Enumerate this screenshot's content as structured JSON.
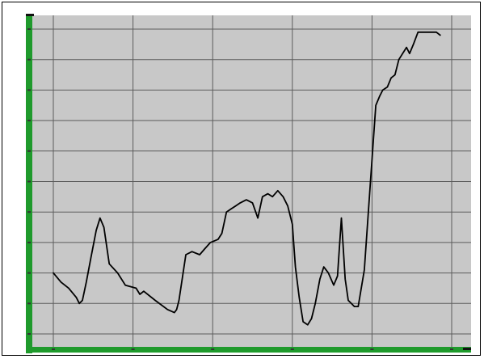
{
  "colors": {
    "plot_background": "#c8c8c8",
    "grid": "#5c5c5c",
    "axis": "#1f9a2c",
    "line": "#000000",
    "frame": "#000000"
  },
  "chart_data": {
    "type": "line",
    "title": "",
    "xlabel": "",
    "ylabel": "",
    "xlim": [
      0,
      52
    ],
    "ylim": [
      0,
      100
    ],
    "x_gridlines": 5,
    "y_gridlines": 10,
    "grid": true,
    "legend": "none",
    "series": [
      {
        "x": [
          0,
          1,
          2,
          3,
          3.4,
          3.8,
          4.3,
          4.9,
          5.6,
          6.1,
          6.6,
          7.3,
          8.4,
          9.4,
          10.8,
          11.3,
          11.8,
          13.3,
          14.9,
          15.8,
          16.1,
          16.4,
          17.3,
          18.1,
          19.1,
          19.8,
          20.5,
          21.5,
          22.0,
          22.6,
          23.2,
          23.8,
          24.4,
          25.2,
          26.0,
          26.7,
          27.3,
          28.0,
          28.6,
          29.3,
          30.0,
          30.6,
          31.2,
          31.6,
          32.1,
          32.6,
          33.2,
          33.7,
          34.2,
          34.8,
          35.3,
          35.9,
          36.6,
          37.1,
          37.6,
          38.1,
          38.5,
          38.9,
          39.3,
          39.8,
          40.6,
          41.4,
          42.1,
          42.6,
          43.0,
          43.6,
          44.1,
          44.6,
          45.1,
          45.6,
          46.1,
          46.5,
          47.0,
          47.6,
          48.2,
          48.6,
          49.0,
          49.5,
          50.0,
          50.5
        ],
        "y": [
          20,
          17,
          15,
          12,
          10,
          11,
          17,
          25,
          34,
          38,
          35,
          23,
          20,
          16,
          15,
          13,
          14,
          11,
          8,
          7,
          8,
          11,
          26,
          27,
          26,
          28,
          30,
          31,
          33,
          40,
          41,
          42,
          43,
          44,
          43,
          38,
          45,
          46,
          45,
          47,
          45,
          42,
          36,
          22,
          12,
          4,
          3,
          5,
          10,
          18,
          22,
          20,
          16,
          19,
          38,
          18,
          11,
          10,
          9,
          9,
          21,
          50,
          75,
          78,
          80,
          81,
          84,
          85,
          90,
          92,
          94,
          92,
          95,
          99,
          99,
          99,
          99,
          99,
          99,
          98
        ]
      }
    ]
  }
}
